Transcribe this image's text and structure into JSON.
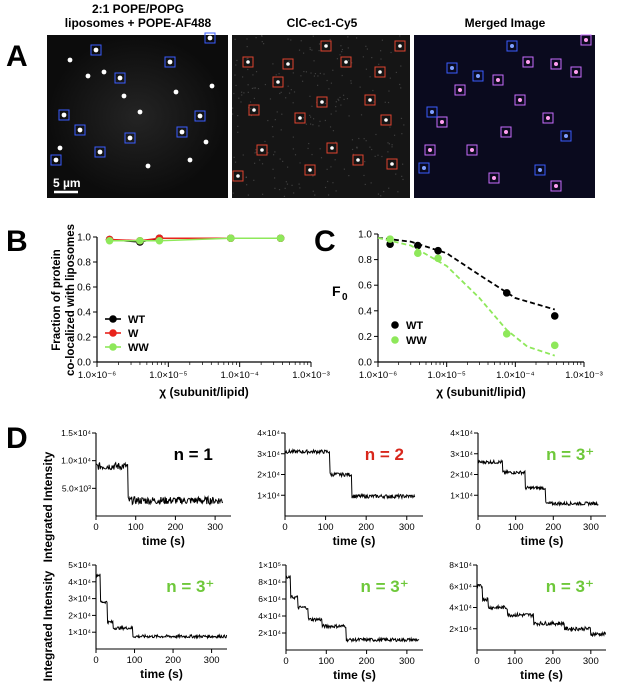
{
  "panel_letters": {
    "a": "A",
    "b": "B",
    "c": "C",
    "d": "D"
  },
  "panel_a": {
    "titles": {
      "liposomes_line1": "2:1 POPE/POPG",
      "liposomes_line2": "liposomes + POPE-AF488",
      "protein": "ClC-ec1-Cy5",
      "merged": "Merged Image"
    },
    "scale_bar_label": "5 µm",
    "colors": {
      "liposome_box": "#3a5cff",
      "protein_box": "#e0432f",
      "merged_box": "#c86cff"
    }
  },
  "chart_data": [
    {
      "id": "B",
      "type": "line",
      "x_scale": "log",
      "xlim": [
        1e-06,
        0.001
      ],
      "ylim": [
        0,
        1.0
      ],
      "x_ticks": [
        1e-06,
        1e-05,
        0.0001,
        0.001
      ],
      "x_tick_labels": [
        "1.0×10⁻⁶",
        "1.0×10⁻⁵",
        "1.0×10⁻⁴",
        "1.0×10⁻³"
      ],
      "y_ticks": [
        0,
        0.2,
        0.4,
        0.6,
        0.8,
        1.0
      ],
      "y_tick_labels": [
        "0.0",
        "0.2",
        "0.4",
        "0.6",
        "0.8",
        "1.0"
      ],
      "xlabel": "χ (subunit/lipid)",
      "ylabel_line1": "Fraction of protein",
      "ylabel_line2": "co-localized with liposomes",
      "legend": "bottom-left",
      "series": [
        {
          "name": "WT",
          "color": "#000000",
          "x": [
            1.5e-06,
            4e-06,
            7.5e-06,
            7.5e-05,
            0.000375
          ],
          "y": [
            0.98,
            0.96,
            0.99,
            0.99,
            0.99
          ]
        },
        {
          "name": "W",
          "color": "#e8231c",
          "x": [
            1.5e-06,
            4e-06,
            7.5e-06,
            7.5e-05,
            0.000375
          ],
          "y": [
            0.98,
            0.97,
            0.99,
            0.99,
            0.99
          ]
        },
        {
          "name": "WW",
          "color": "#8ee85a",
          "x": [
            1.5e-06,
            4e-06,
            7.5e-06,
            7.5e-05,
            0.000375
          ],
          "y": [
            0.97,
            0.97,
            0.97,
            0.99,
            0.99
          ]
        }
      ]
    },
    {
      "id": "C",
      "type": "scatter",
      "x_scale": "log",
      "xlim": [
        1e-06,
        0.001
      ],
      "ylim": [
        0,
        1.0
      ],
      "x_ticks": [
        1e-06,
        1e-05,
        0.0001,
        0.001
      ],
      "x_tick_labels": [
        "1.0×10⁻⁶",
        "1.0×10⁻⁵",
        "1.0×10⁻⁴",
        "1.0×10⁻³"
      ],
      "y_ticks": [
        0,
        0.2,
        0.4,
        0.6,
        0.8,
        1.0
      ],
      "y_tick_labels": [
        "0.0",
        "0.2",
        "0.4",
        "0.6",
        "0.8",
        "1.0"
      ],
      "xlabel": "χ (subunit/lipid)",
      "ylabel": "F",
      "ylabel_sub": "0",
      "legend": "bottom-left",
      "series": [
        {
          "name": "WT",
          "color": "#000000",
          "x": [
            1.5e-06,
            3.8e-06,
            7.5e-06,
            7.5e-05,
            0.000375
          ],
          "y": [
            0.92,
            0.91,
            0.87,
            0.54,
            0.36
          ],
          "fit_x": [
            1e-06,
            3e-06,
            1e-05,
            3e-05,
            0.0001,
            0.000375
          ],
          "fit_y": [
            0.97,
            0.94,
            0.85,
            0.68,
            0.5,
            0.41
          ]
        },
        {
          "name": "WW",
          "color": "#8ee85a",
          "x": [
            1.5e-06,
            3.8e-06,
            7.5e-06,
            7.5e-05,
            0.000375
          ],
          "y": [
            0.96,
            0.85,
            0.81,
            0.22,
            0.13
          ],
          "fit_x": [
            1e-06,
            3e-06,
            1e-05,
            3e-05,
            7.5e-05,
            0.00015,
            0.000375
          ],
          "fit_y": [
            0.97,
            0.91,
            0.75,
            0.5,
            0.25,
            0.12,
            0.05
          ]
        }
      ]
    },
    {
      "id": "D1",
      "type": "line",
      "xlabel": "time (s)",
      "xlim": [
        0,
        340
      ],
      "x_ticks": [
        0,
        100,
        200,
        300
      ],
      "ylim": [
        0,
        15000
      ],
      "y_ticks": [
        5000,
        10000,
        15000
      ],
      "y_tick_labels": [
        "5.0×10³",
        "1.0×10⁴",
        "1.5×10⁴"
      ],
      "steps": [
        [
          0,
          9000
        ],
        [
          80,
          2800
        ],
        [
          320,
          2800
        ]
      ],
      "noise": 700,
      "annotation": "n = 1",
      "annotation_color": "#000000"
    },
    {
      "id": "D2",
      "type": "line",
      "xlabel": "time (s)",
      "xlim": [
        0,
        340
      ],
      "x_ticks": [
        0,
        100,
        200,
        300
      ],
      "ylim": [
        0,
        40000
      ],
      "y_ticks": [
        10000,
        20000,
        30000,
        40000
      ],
      "y_tick_labels": [
        "1×10⁴",
        "2×10⁴",
        "3×10⁴",
        "4×10⁴"
      ],
      "steps": [
        [
          0,
          31000
        ],
        [
          110,
          20000
        ],
        [
          165,
          9500
        ],
        [
          320,
          9500
        ]
      ],
      "noise": 900,
      "annotation": "n = 2",
      "annotation_color": "#d8271c"
    },
    {
      "id": "D3",
      "type": "line",
      "xlabel": "time (s)",
      "xlim": [
        0,
        340
      ],
      "x_ticks": [
        0,
        100,
        200,
        300
      ],
      "ylim": [
        0,
        40000
      ],
      "y_ticks": [
        10000,
        20000,
        30000,
        40000
      ],
      "y_tick_labels": [
        "1×10⁴",
        "2×10⁴",
        "3×10⁴",
        "4×10⁴"
      ],
      "steps": [
        [
          0,
          26000
        ],
        [
          65,
          21000
        ],
        [
          125,
          13500
        ],
        [
          180,
          6000
        ],
        [
          320,
          6000
        ]
      ],
      "noise": 800,
      "annotation": "n = 3⁺",
      "annotation_color": "#6ec83a"
    },
    {
      "id": "D4",
      "type": "line",
      "xlabel": "time (s)",
      "xlim": [
        0,
        340
      ],
      "x_ticks": [
        0,
        100,
        200,
        300
      ],
      "ylim": [
        0,
        50000
      ],
      "y_ticks": [
        10000,
        20000,
        30000,
        40000,
        50000
      ],
      "y_tick_labels": [
        "1×10⁴",
        "2×10⁴",
        "3×10⁴",
        "4×10⁴",
        "5×10⁴"
      ],
      "steps": [
        [
          0,
          44000
        ],
        [
          12,
          28000
        ],
        [
          30,
          16000
        ],
        [
          45,
          12500
        ],
        [
          95,
          7500
        ],
        [
          340,
          7000
        ]
      ],
      "noise": 900,
      "annotation": "n = 3⁺",
      "annotation_color": "#6ec83a"
    },
    {
      "id": "D5",
      "type": "line",
      "xlabel": "time (s)",
      "xlim": [
        0,
        340
      ],
      "x_ticks": [
        0,
        100,
        200,
        300
      ],
      "ylim": [
        0,
        100000
      ],
      "y_ticks": [
        20000,
        40000,
        60000,
        80000,
        100000
      ],
      "y_tick_labels": [
        "2×10⁴",
        "4×10⁴",
        "6×10⁴",
        "8×10⁴",
        "1×10⁵"
      ],
      "steps": [
        [
          0,
          85000
        ],
        [
          12,
          62000
        ],
        [
          30,
          50000
        ],
        [
          55,
          36000
        ],
        [
          90,
          28000
        ],
        [
          150,
          12000
        ],
        [
          330,
          11000
        ]
      ],
      "noise": 2000,
      "annotation": "n = 3⁺",
      "annotation_color": "#6ec83a"
    },
    {
      "id": "D6",
      "type": "line",
      "xlabel": "time (s)",
      "xlim": [
        0,
        340
      ],
      "x_ticks": [
        0,
        100,
        200,
        300
      ],
      "ylim": [
        0,
        80000
      ],
      "y_ticks": [
        20000,
        40000,
        60000,
        80000
      ],
      "y_tick_labels": [
        "2×10⁴",
        "4×10⁴",
        "6×10⁴",
        "8×10⁴"
      ],
      "steps": [
        [
          0,
          60000
        ],
        [
          15,
          48000
        ],
        [
          30,
          40000
        ],
        [
          80,
          33000
        ],
        [
          150,
          25000
        ],
        [
          230,
          20000
        ],
        [
          300,
          15000
        ],
        [
          340,
          9000
        ]
      ],
      "noise": 1800,
      "annotation": "n = 3⁺",
      "annotation_color": "#6ec83a"
    }
  ],
  "panel_d_ylabel": "Integrated Intensity"
}
